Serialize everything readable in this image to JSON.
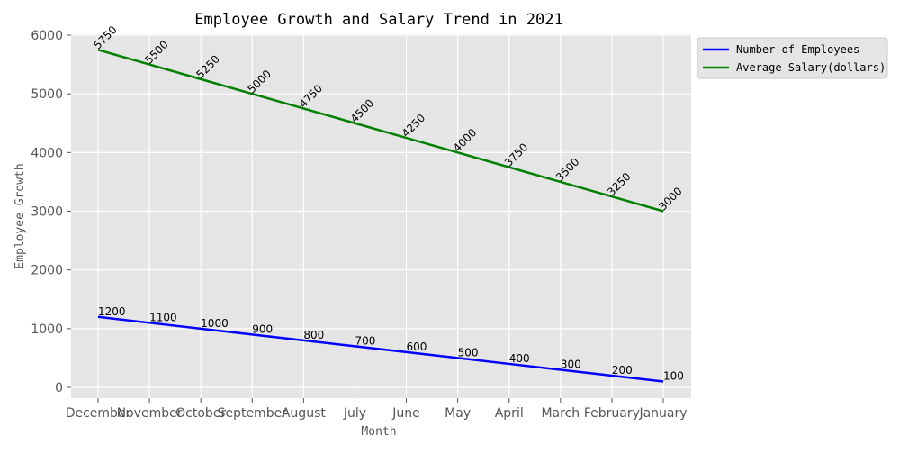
{
  "chart_data": {
    "type": "line",
    "title": "Employee Growth and Salary Trend in 2021",
    "xlabel": "Month",
    "ylabel": "Employee Growth",
    "categories": [
      "December",
      "November",
      "October",
      "September",
      "August",
      "July",
      "June",
      "May",
      "April",
      "March",
      "February",
      "January"
    ],
    "ylim": [
      -180,
      6000
    ],
    "yticks": [
      0,
      1000,
      2000,
      3000,
      4000,
      5000,
      6000
    ],
    "grid": true,
    "legend_position": "outside-top-right",
    "series": [
      {
        "name": "Number of Employees",
        "color": "#0000ff",
        "values": [
          1200,
          1100,
          1000,
          900,
          800,
          700,
          600,
          500,
          400,
          300,
          200,
          100
        ],
        "label_rotation": 0
      },
      {
        "name": "Average Salary(dollars)",
        "color": "#008000",
        "values": [
          5750,
          5500,
          5250,
          5000,
          4750,
          4500,
          4250,
          4000,
          3750,
          3500,
          3250,
          3000
        ],
        "label_rotation": -45
      }
    ]
  }
}
